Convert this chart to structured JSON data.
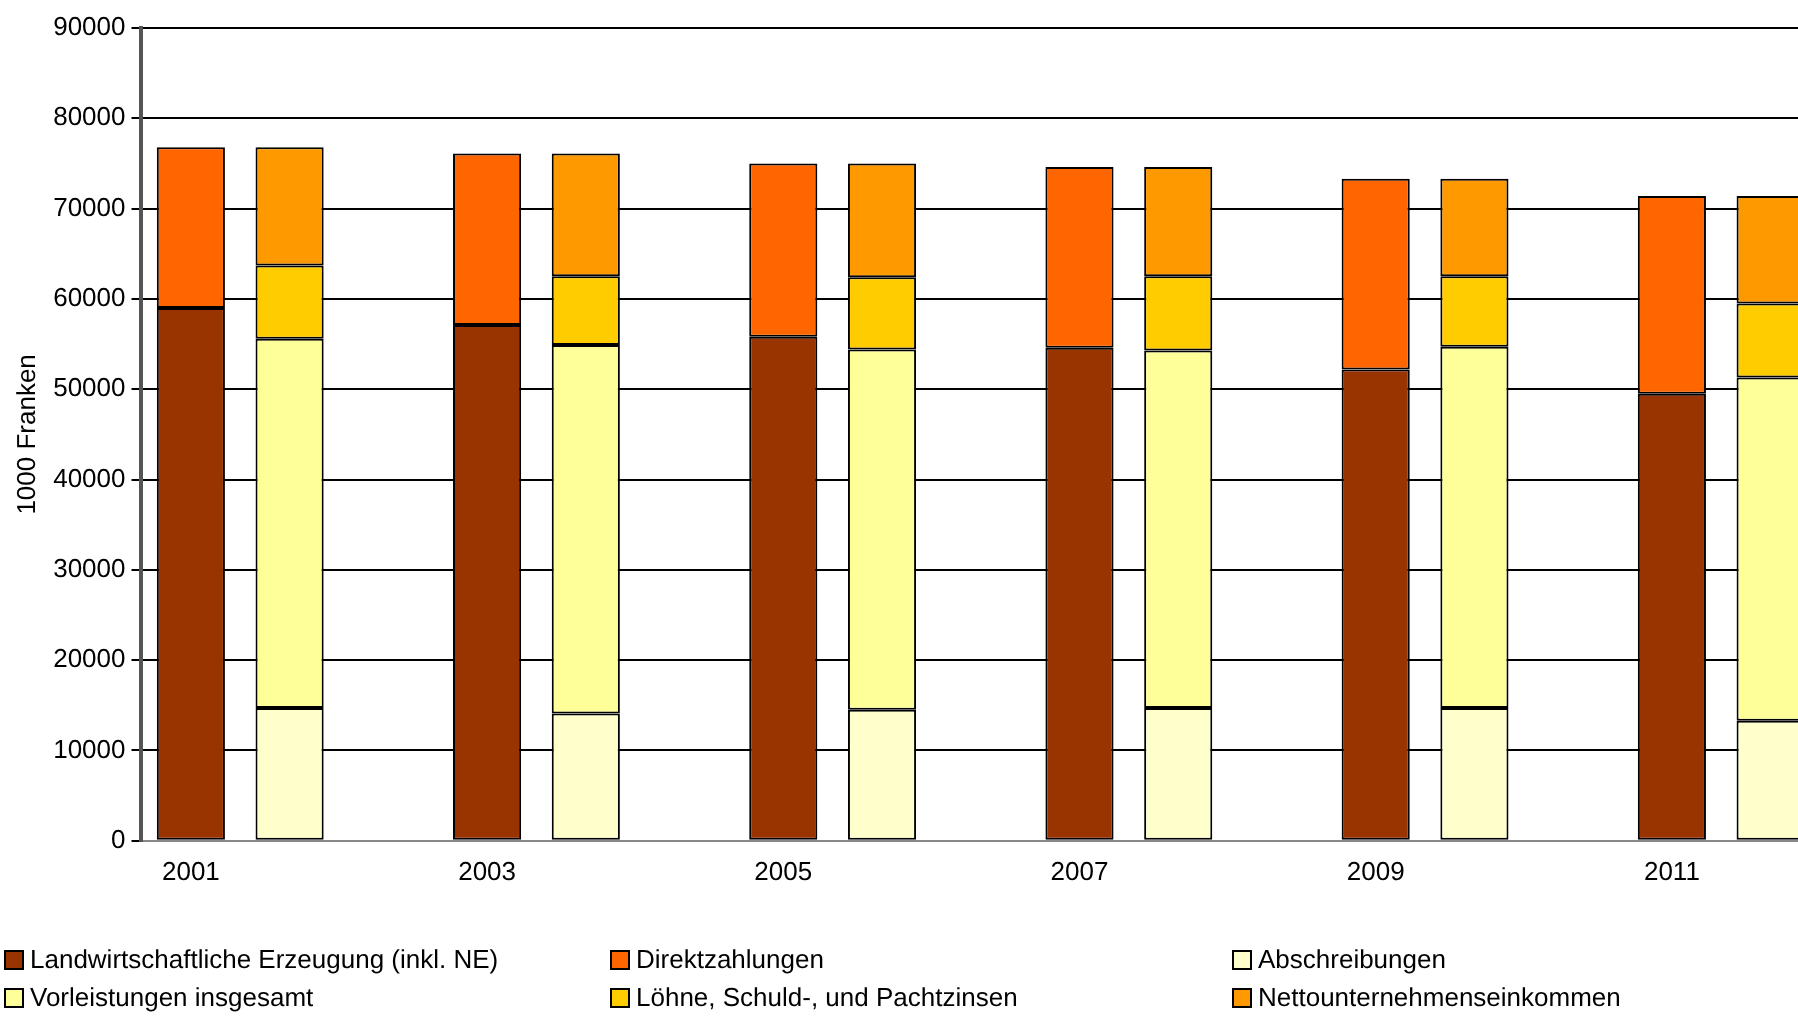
{
  "chart_data": {
    "type": "bar",
    "ylabel": "1000 Franken",
    "stacked": true,
    "grid": "y",
    "legend": "bottom",
    "ylim": [
      0,
      90000
    ],
    "yticks": [
      0,
      10000,
      20000,
      30000,
      40000,
      50000,
      60000,
      70000,
      80000,
      90000
    ],
    "categories": [
      "2001",
      null,
      null,
      "2003",
      null,
      null,
      "2005",
      null,
      null,
      "2007",
      null,
      null,
      "2009",
      null,
      null,
      "2011",
      null
    ],
    "series": [
      {
        "name": "Landwirtschaftliche Erzeugung (inkl. NE)",
        "color": "#993300",
        "values": [
          59000,
          null,
          null,
          57100,
          null,
          null,
          55800,
          null,
          null,
          54600,
          null,
          null,
          52200,
          null,
          null,
          49500,
          null
        ]
      },
      {
        "name": "Direktzahlungen",
        "color": "#ff6600",
        "values": [
          17800,
          null,
          null,
          19000,
          null,
          null,
          19200,
          null,
          null,
          20000,
          null,
          null,
          21100,
          null,
          null,
          21900,
          null
        ]
      },
      {
        "name": "Abschreibungen",
        "color": "#ffffcc",
        "values": [
          null,
          14700,
          null,
          null,
          14100,
          null,
          null,
          14500,
          null,
          null,
          14700,
          null,
          null,
          14700,
          null,
          null,
          13300
        ]
      },
      {
        "name": "Vorleistungen insgesamt",
        "color": "#ffff99",
        "values": [
          null,
          40900,
          null,
          null,
          40800,
          null,
          null,
          39900,
          null,
          null,
          39600,
          null,
          null,
          40000,
          null,
          null,
          38000
        ]
      },
      {
        "name": "Löhne, Schuld-, und Pachtzinsen",
        "color": "#ffcc00",
        "values": [
          null,
          8100,
          null,
          null,
          7600,
          null,
          null,
          8000,
          null,
          null,
          8200,
          null,
          null,
          7800,
          null,
          null,
          8200
        ]
      },
      {
        "name": "Nettounternehmenseinkommen",
        "color": "#ff9900",
        "values": [
          null,
          13100,
          null,
          null,
          13600,
          null,
          null,
          12600,
          null,
          null,
          12100,
          null,
          null,
          10800,
          null,
          null,
          11900
        ]
      }
    ]
  }
}
